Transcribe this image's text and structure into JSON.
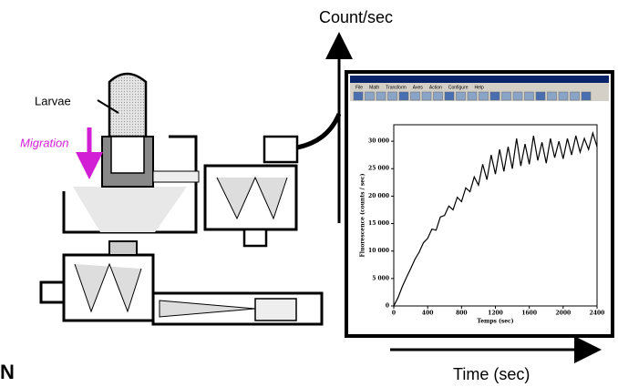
{
  "labels": {
    "count_axis": "Count/sec",
    "time_axis": "Time (sec)",
    "larvae": "Larvae",
    "migration": "Migration",
    "corner": "N"
  },
  "window": {
    "menu": [
      "File",
      "Math",
      "Transform",
      "Axes",
      "Action",
      "Configure",
      "Help"
    ]
  },
  "chart_data": {
    "type": "line",
    "xlabel": "Temps (sec)",
    "ylabel": "Fluorescence (counts / sec)",
    "x": [
      0,
      50,
      100,
      150,
      200,
      250,
      300,
      350,
      400,
      450,
      500,
      550,
      600,
      650,
      700,
      750,
      800,
      850,
      900,
      950,
      1000,
      1050,
      1100,
      1150,
      1200,
      1250,
      1300,
      1350,
      1400,
      1450,
      1500,
      1550,
      1600,
      1650,
      1700,
      1750,
      1800,
      1850,
      1900,
      1950,
      2000,
      2050,
      2100,
      2150,
      2200,
      2250,
      2300,
      2350,
      2400
    ],
    "series": [
      {
        "color": "#000000",
        "values": [
          0,
          1500,
          3500,
          5200,
          6800,
          8500,
          9800,
          11500,
          12300,
          14000,
          13800,
          16200,
          16500,
          18200,
          17500,
          19800,
          19000,
          21500,
          20800,
          23500,
          22000,
          25800,
          23000,
          27500,
          24000,
          28500,
          24500,
          29000,
          25000,
          30500,
          25500,
          29500,
          25800,
          31000,
          26500,
          29800,
          26000,
          30500,
          27000,
          30000,
          26800,
          30500,
          27500,
          31000,
          28000,
          30500,
          28500,
          31500,
          29000
        ]
      }
    ],
    "xlim": [
      0,
      2400
    ],
    "ylim": [
      0,
      33000
    ],
    "xticks": [
      0,
      400,
      800,
      1200,
      1600,
      2000,
      2400
    ],
    "yticks": [
      0,
      {
        "value": 5000,
        "label": "5 000"
      },
      {
        "value": 10000,
        "label": "10 000"
      },
      {
        "value": 15000,
        "label": "15 000"
      },
      {
        "value": 20000,
        "label": "20 000"
      },
      {
        "value": 25000,
        "label": "25 000"
      },
      {
        "value": 30000,
        "label": "30 000"
      }
    ]
  }
}
